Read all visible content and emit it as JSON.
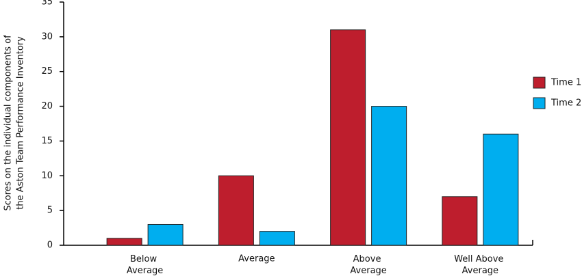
{
  "chart_data": {
    "type": "bar",
    "y_label": [
      "Scores on the individual components of",
      "the Aston Team Performance Inventory"
    ],
    "categories": [
      "Below Average",
      "Average",
      "Above Average",
      "Well Above Average"
    ],
    "series": [
      {
        "name": "Time 1",
        "color": "#be1e2d",
        "values": [
          1,
          10,
          31,
          7
        ]
      },
      {
        "name": "Time 2",
        "color": "#00aeef",
        "values": [
          3,
          2,
          20,
          16
        ]
      }
    ],
    "ylim": [
      0,
      35
    ],
    "yticks": [
      0,
      5,
      10,
      15,
      20,
      25,
      30,
      35
    ],
    "grid": false,
    "legend": "right"
  }
}
